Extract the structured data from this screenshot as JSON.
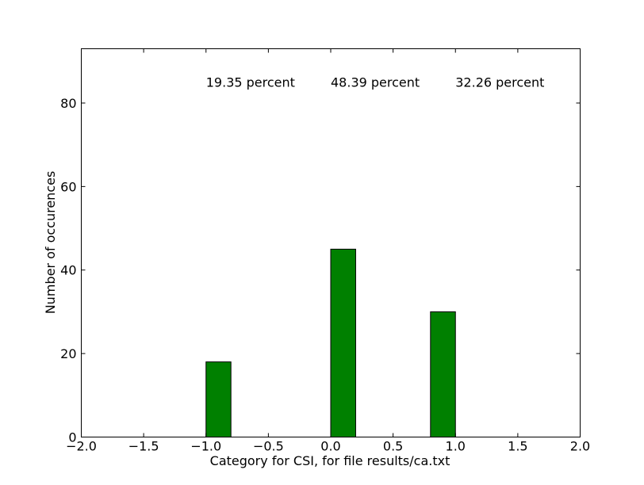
{
  "chart_data": {
    "type": "bar",
    "title": "",
    "xlabel": "Category for CSI, for file results/ca.txt",
    "ylabel": "Number of occurences",
    "xlim": [
      -2.0,
      2.0
    ],
    "ylim": [
      0,
      93
    ],
    "xticks": [
      -2.0,
      -1.5,
      -1.0,
      -0.5,
      0.0,
      0.5,
      1.0,
      1.5,
      2.0
    ],
    "xtick_labels": [
      "−2.0",
      "−1.5",
      "−1.0",
      "−0.5",
      "0.0",
      "0.5",
      "1.0",
      "1.5",
      "2.0"
    ],
    "yticks": [
      0,
      20,
      40,
      60,
      80
    ],
    "ytick_labels": [
      "0",
      "20",
      "40",
      "60",
      "80"
    ],
    "bars": [
      {
        "x_start": -1.0,
        "x_end": -0.8,
        "value": 18
      },
      {
        "x_start": 0.0,
        "x_end": 0.2,
        "value": 45
      },
      {
        "x_start": 0.8,
        "x_end": 1.0,
        "value": 30
      }
    ],
    "annotations": [
      {
        "text": "19.35 percent",
        "x": -1.0,
        "y": 85
      },
      {
        "text": "48.39 percent",
        "x": 0.0,
        "y": 85
      },
      {
        "text": "32.26 percent",
        "x": 1.0,
        "y": 85
      }
    ],
    "bar_color": "#008000",
    "grid": false,
    "legend": false
  }
}
